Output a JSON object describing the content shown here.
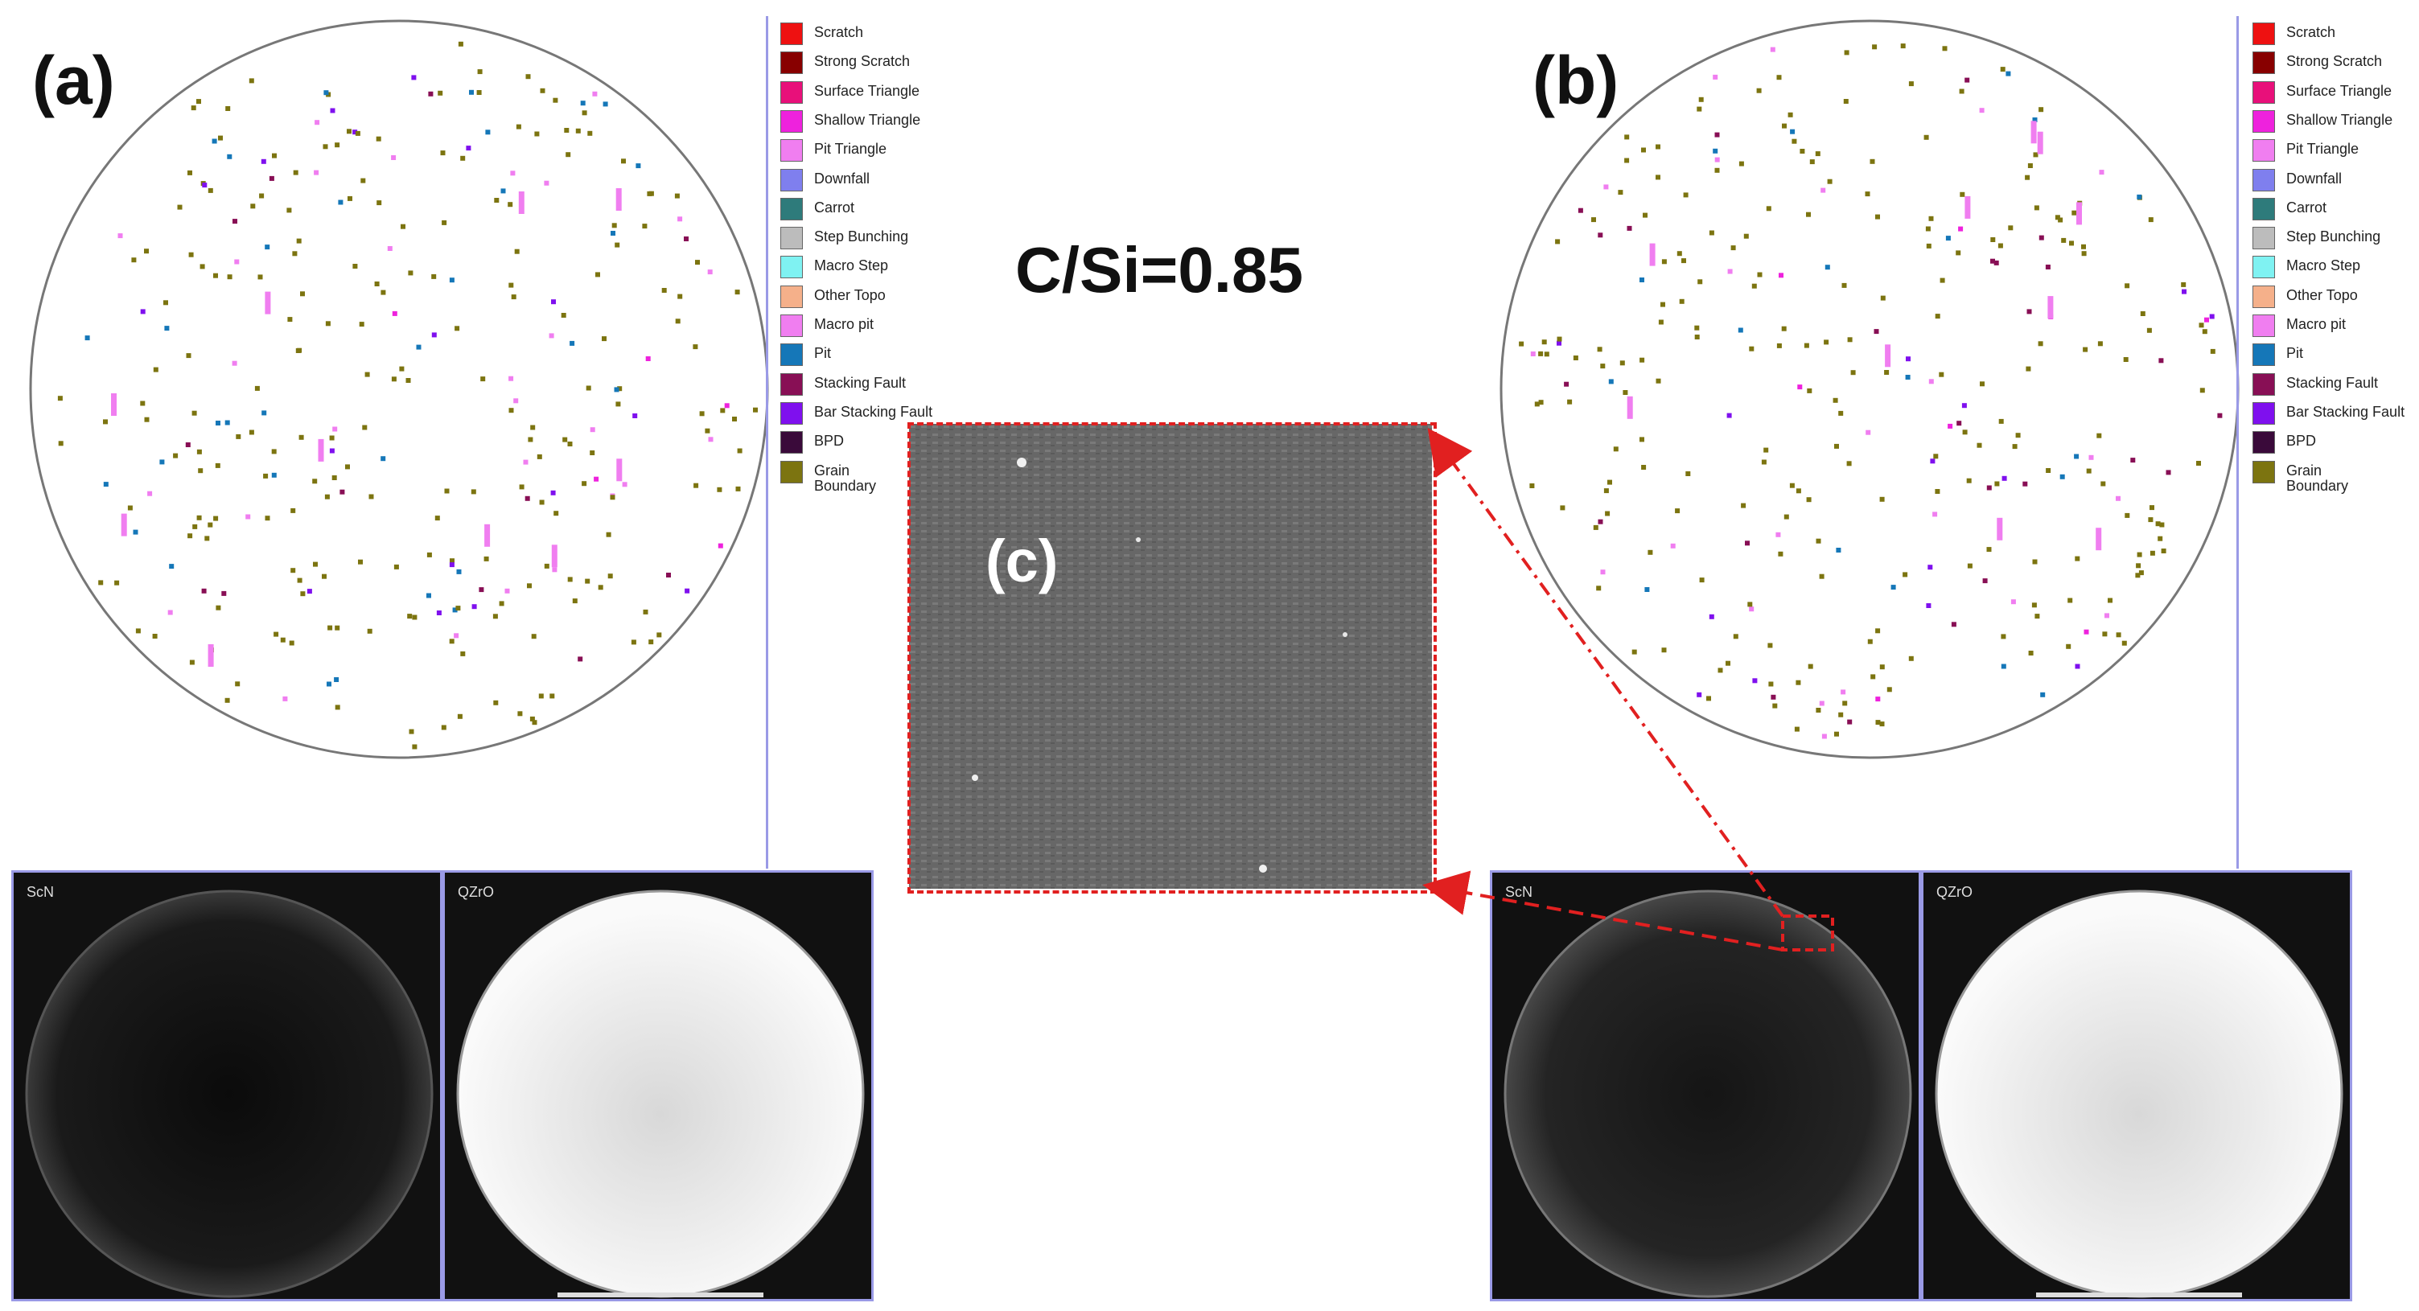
{
  "labels": {
    "a": "(a)",
    "b": "(b)",
    "c": "(c)"
  },
  "title": "C/Si=0.85",
  "legend": [
    {
      "label": "Scratch",
      "color": "#ee1111"
    },
    {
      "label": "Strong Scratch",
      "color": "#880000"
    },
    {
      "label": "Surface Triangle",
      "color": "#e8107a"
    },
    {
      "label": "Shallow Triangle",
      "color": "#ee22dd"
    },
    {
      "label": "Pit Triangle",
      "color": "#f07ef0"
    },
    {
      "label": "Downfall",
      "color": "#7f7fee"
    },
    {
      "label": "Carrot",
      "color": "#2e7b7b"
    },
    {
      "label": "Step Bunching",
      "color": "#bcbcbc"
    },
    {
      "label": "Macro Step",
      "color": "#7ff2f2"
    },
    {
      "label": "Other Topo",
      "color": "#f5b08a"
    },
    {
      "label": "Macro pit",
      "color": "#f07ef0"
    },
    {
      "label": "Pit",
      "color": "#1577b8"
    },
    {
      "label": "Stacking Fault",
      "color": "#880f55"
    },
    {
      "label": "Bar Stacking Fault",
      "color": "#7f10ee"
    },
    {
      "label": "BPD",
      "color": "#3a0a3a"
    },
    {
      "label": "Grain Boundary",
      "color": "#7c7410"
    }
  ],
  "scans": {
    "left": {
      "left_label": "ScN",
      "right_label": "QZrO"
    },
    "right": {
      "left_label": "ScN",
      "right_label": "QZrO"
    }
  }
}
